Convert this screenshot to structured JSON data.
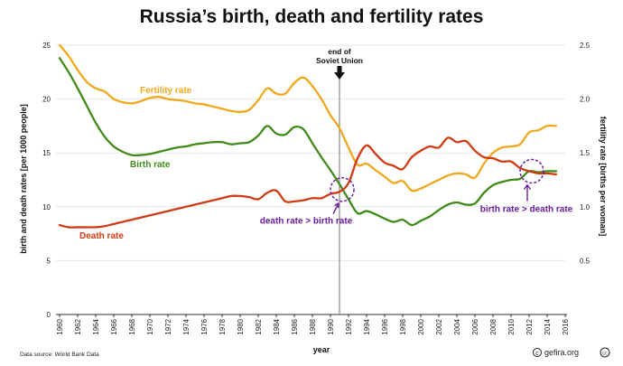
{
  "chart_data": {
    "type": "line",
    "title": "Russia’s birth, death and fertility rates",
    "xlabel": "year",
    "ylabel": "birth and death rates [per 1000 people]",
    "ylabel_right": "fertility rate [births per woman]",
    "xlim": [
      1960,
      2016
    ],
    "ylim": [
      0,
      25
    ],
    "ylim_right": [
      0,
      2.5
    ],
    "x_ticks": [
      1960,
      1962,
      1964,
      1966,
      1968,
      1970,
      1972,
      1974,
      1976,
      1978,
      1980,
      1982,
      1984,
      1986,
      1988,
      1990,
      1992,
      1994,
      1996,
      1998,
      2000,
      2002,
      2004,
      2006,
      2008,
      2010,
      2012,
      2014,
      2016
    ],
    "y_ticks_left": [
      "0",
      "5",
      "10",
      "15",
      "20",
      "25"
    ],
    "y_ticks_right": [
      "0.5",
      "1.0",
      "1.5",
      "2.0",
      "2.5"
    ],
    "x": [
      1960,
      1961,
      1962,
      1963,
      1964,
      1965,
      1966,
      1967,
      1968,
      1969,
      1970,
      1971,
      1972,
      1973,
      1974,
      1975,
      1976,
      1977,
      1978,
      1979,
      1980,
      1981,
      1982,
      1983,
      1984,
      1985,
      1986,
      1987,
      1988,
      1989,
      1990,
      1991,
      1992,
      1993,
      1994,
      1995,
      1996,
      1997,
      1998,
      1999,
      2000,
      2001,
      2002,
      2003,
      2004,
      2005,
      2006,
      2007,
      2008,
      2009,
      2010,
      2011,
      2012,
      2013,
      2014,
      2015
    ],
    "series": [
      {
        "name": "Fertility rate",
        "axis": "right",
        "color": "#f0a81c",
        "values": [
          2.5,
          2.4,
          2.27,
          2.16,
          2.1,
          2.07,
          2.0,
          1.97,
          1.96,
          1.98,
          2.01,
          2.02,
          2.0,
          1.99,
          1.98,
          1.96,
          1.95,
          1.93,
          1.91,
          1.89,
          1.88,
          1.9,
          1.99,
          2.1,
          2.05,
          2.05,
          2.15,
          2.2,
          2.12,
          2.0,
          1.85,
          1.73,
          1.55,
          1.39,
          1.4,
          1.34,
          1.28,
          1.22,
          1.24,
          1.15,
          1.17,
          1.21,
          1.25,
          1.29,
          1.31,
          1.3,
          1.27,
          1.4,
          1.5,
          1.55,
          1.56,
          1.58,
          1.69,
          1.71,
          1.75,
          1.75
        ]
      },
      {
        "name": "Birth rate",
        "axis": "left",
        "color": "#3f8a18",
        "values": [
          23.8,
          22.5,
          21.0,
          19.4,
          17.8,
          16.5,
          15.6,
          15.1,
          14.8,
          14.8,
          14.9,
          15.1,
          15.3,
          15.5,
          15.6,
          15.8,
          15.9,
          16.0,
          16.0,
          15.8,
          15.9,
          16.0,
          16.6,
          17.5,
          16.8,
          16.7,
          17.4,
          17.2,
          15.9,
          14.6,
          13.4,
          12.1,
          10.7,
          9.4,
          9.6,
          9.3,
          8.9,
          8.6,
          8.8,
          8.3,
          8.7,
          9.1,
          9.7,
          10.2,
          10.4,
          10.2,
          10.3,
          11.3,
          12.0,
          12.3,
          12.5,
          12.6,
          13.3,
          13.2,
          13.3,
          13.3
        ]
      },
      {
        "name": "Death rate",
        "axis": "left",
        "color": "#d23a12",
        "values": [
          8.3,
          8.1,
          8.1,
          8.1,
          8.1,
          8.2,
          8.4,
          8.6,
          8.8,
          9.0,
          9.2,
          9.4,
          9.6,
          9.8,
          10.0,
          10.2,
          10.4,
          10.6,
          10.8,
          11.0,
          11.0,
          10.9,
          10.7,
          11.3,
          11.5,
          10.5,
          10.5,
          10.6,
          10.8,
          10.8,
          11.2,
          11.4,
          12.2,
          14.5,
          15.7,
          14.9,
          14.1,
          13.8,
          13.5,
          14.6,
          15.2,
          15.6,
          15.5,
          16.4,
          16.0,
          16.1,
          15.2,
          14.6,
          14.5,
          14.2,
          14.2,
          13.6,
          13.3,
          13.1,
          13.1,
          13.0
        ]
      }
    ],
    "annotations": {
      "soviet_line_year": 1991,
      "soviet_label": [
        "end of",
        "Soviet Union"
      ],
      "cross1": {
        "year": 1991.3,
        "value": 11.6,
        "label": "death rate > birth rate"
      },
      "cross2": {
        "year": 2012.3,
        "value": 13.3,
        "label": "birth rate > death rate"
      }
    },
    "legend": "inline"
  },
  "footer": {
    "source": "Data source: World Bank Data",
    "credit": "gefira.org"
  }
}
